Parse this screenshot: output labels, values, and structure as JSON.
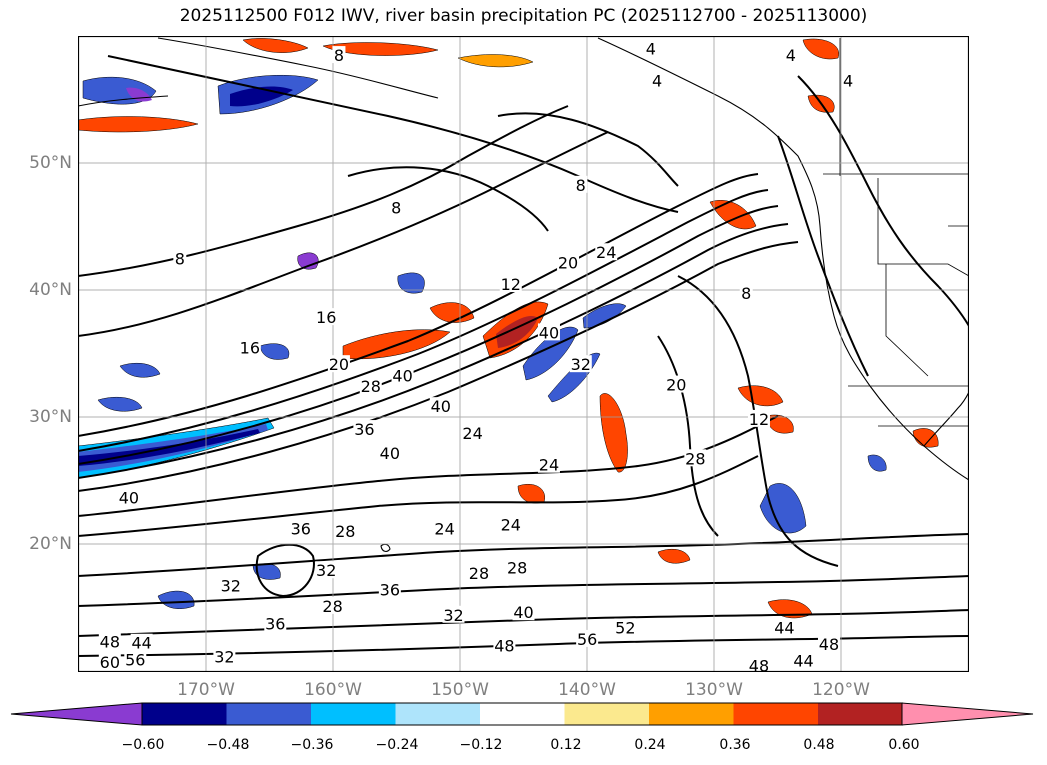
{
  "title": "2025112500 F012 IWV, river basin precipitation PC (2025112700 - 2025113000)",
  "lat_labels": [
    "50°N",
    "40°N",
    "30°N",
    "20°N"
  ],
  "lon_labels": [
    "170°W",
    "160°W",
    "150°W",
    "140°W",
    "130°W",
    "120°W"
  ],
  "colorbar": {
    "colors": [
      "#8a3bd1",
      "#00008b",
      "#3a5bd2",
      "#00bfff",
      "#aee4fb",
      "#ffffff",
      "#fbe98e",
      "#ff9f00",
      "#ff4500",
      "#b22222",
      "#ff8fae"
    ],
    "ticks": [
      "−0.60",
      "−0.48",
      "−0.36",
      "−0.24",
      "−0.12",
      "0.12",
      "0.24",
      "0.36",
      "0.48",
      "0.60"
    ]
  },
  "contour_labels": [
    {
      "t": "4",
      "lon": -135,
      "lat": 59
    },
    {
      "t": "4",
      "lon": -124,
      "lat": 58.5
    },
    {
      "t": "4",
      "lon": -119.5,
      "lat": 56.5
    },
    {
      "t": "4",
      "lon": -134.5,
      "lat": 56.5
    },
    {
      "t": "8",
      "lon": -159.5,
      "lat": 58.5
    },
    {
      "t": "8",
      "lon": -140.5,
      "lat": 48.3
    },
    {
      "t": "8",
      "lon": -155,
      "lat": 46.5
    },
    {
      "t": "8",
      "lon": -172,
      "lat": 42.5
    },
    {
      "t": "8",
      "lon": -127.5,
      "lat": 39.8
    },
    {
      "t": "12",
      "lon": -146,
      "lat": 40.5
    },
    {
      "t": "12",
      "lon": -126.5,
      "lat": 29.9
    },
    {
      "t": "16",
      "lon": -160.5,
      "lat": 37.9
    },
    {
      "t": "16",
      "lon": -166.5,
      "lat": 35.5
    },
    {
      "t": "20",
      "lon": -159.5,
      "lat": 34.2
    },
    {
      "t": "20",
      "lon": -141.5,
      "lat": 42.2
    },
    {
      "t": "20",
      "lon": -133,
      "lat": 32.6
    },
    {
      "t": "24",
      "lon": -138.5,
      "lat": 43
    },
    {
      "t": "24",
      "lon": -149,
      "lat": 28.8
    },
    {
      "t": "24",
      "lon": -143,
      "lat": 26.3
    },
    {
      "t": "24",
      "lon": -146,
      "lat": 21.6
    },
    {
      "t": "24",
      "lon": -151.2,
      "lat": 21.3
    },
    {
      "t": "28",
      "lon": -157,
      "lat": 32.5
    },
    {
      "t": "28",
      "lon": -159,
      "lat": 21.1
    },
    {
      "t": "28",
      "lon": -131.5,
      "lat": 26.8
    },
    {
      "t": "28",
      "lon": -148.5,
      "lat": 17.8
    },
    {
      "t": "28",
      "lon": -145.5,
      "lat": 18.2
    },
    {
      "t": "28",
      "lon": -160,
      "lat": 15.2
    },
    {
      "t": "32",
      "lon": -140.5,
      "lat": 34.2
    },
    {
      "t": "32",
      "lon": -160.5,
      "lat": 18
    },
    {
      "t": "32",
      "lon": -168,
      "lat": 16.8
    },
    {
      "t": "32",
      "lon": -150.5,
      "lat": 14.5
    },
    {
      "t": "32",
      "lon": -168.5,
      "lat": 11.2
    },
    {
      "t": "36",
      "lon": -157.5,
      "lat": 29.1
    },
    {
      "t": "36",
      "lon": -155.5,
      "lat": 16.5
    },
    {
      "t": "36",
      "lon": -164.5,
      "lat": 13.8
    },
    {
      "t": "36",
      "lon": -162.5,
      "lat": 21.3
    },
    {
      "t": "40",
      "lon": -143,
      "lat": 36.7
    },
    {
      "t": "40",
      "lon": -154.5,
      "lat": 33.3
    },
    {
      "t": "40",
      "lon": -151.5,
      "lat": 30.9
    },
    {
      "t": "40",
      "lon": -155.5,
      "lat": 27.2
    },
    {
      "t": "40",
      "lon": -176,
      "lat": 23.7
    },
    {
      "t": "40",
      "lon": -145,
      "lat": 14.7
    },
    {
      "t": "44",
      "lon": -175,
      "lat": 12.3
    },
    {
      "t": "44",
      "lon": -124.5,
      "lat": 13.5
    },
    {
      "t": "44",
      "lon": -123,
      "lat": 10.9
    },
    {
      "t": "48",
      "lon": -146.5,
      "lat": 12.1
    },
    {
      "t": "48",
      "lon": -177.5,
      "lat": 12.4
    },
    {
      "t": "48",
      "lon": -121,
      "lat": 12.2
    },
    {
      "t": "48",
      "lon": -126.5,
      "lat": 10.5
    },
    {
      "t": "52",
      "lon": -137,
      "lat": 13.5
    },
    {
      "t": "56",
      "lon": -140,
      "lat": 12.6
    },
    {
      "t": "56",
      "lon": -175.5,
      "lat": 11
    },
    {
      "t": "60",
      "lon": -177.5,
      "lat": 10.8
    }
  ]
}
